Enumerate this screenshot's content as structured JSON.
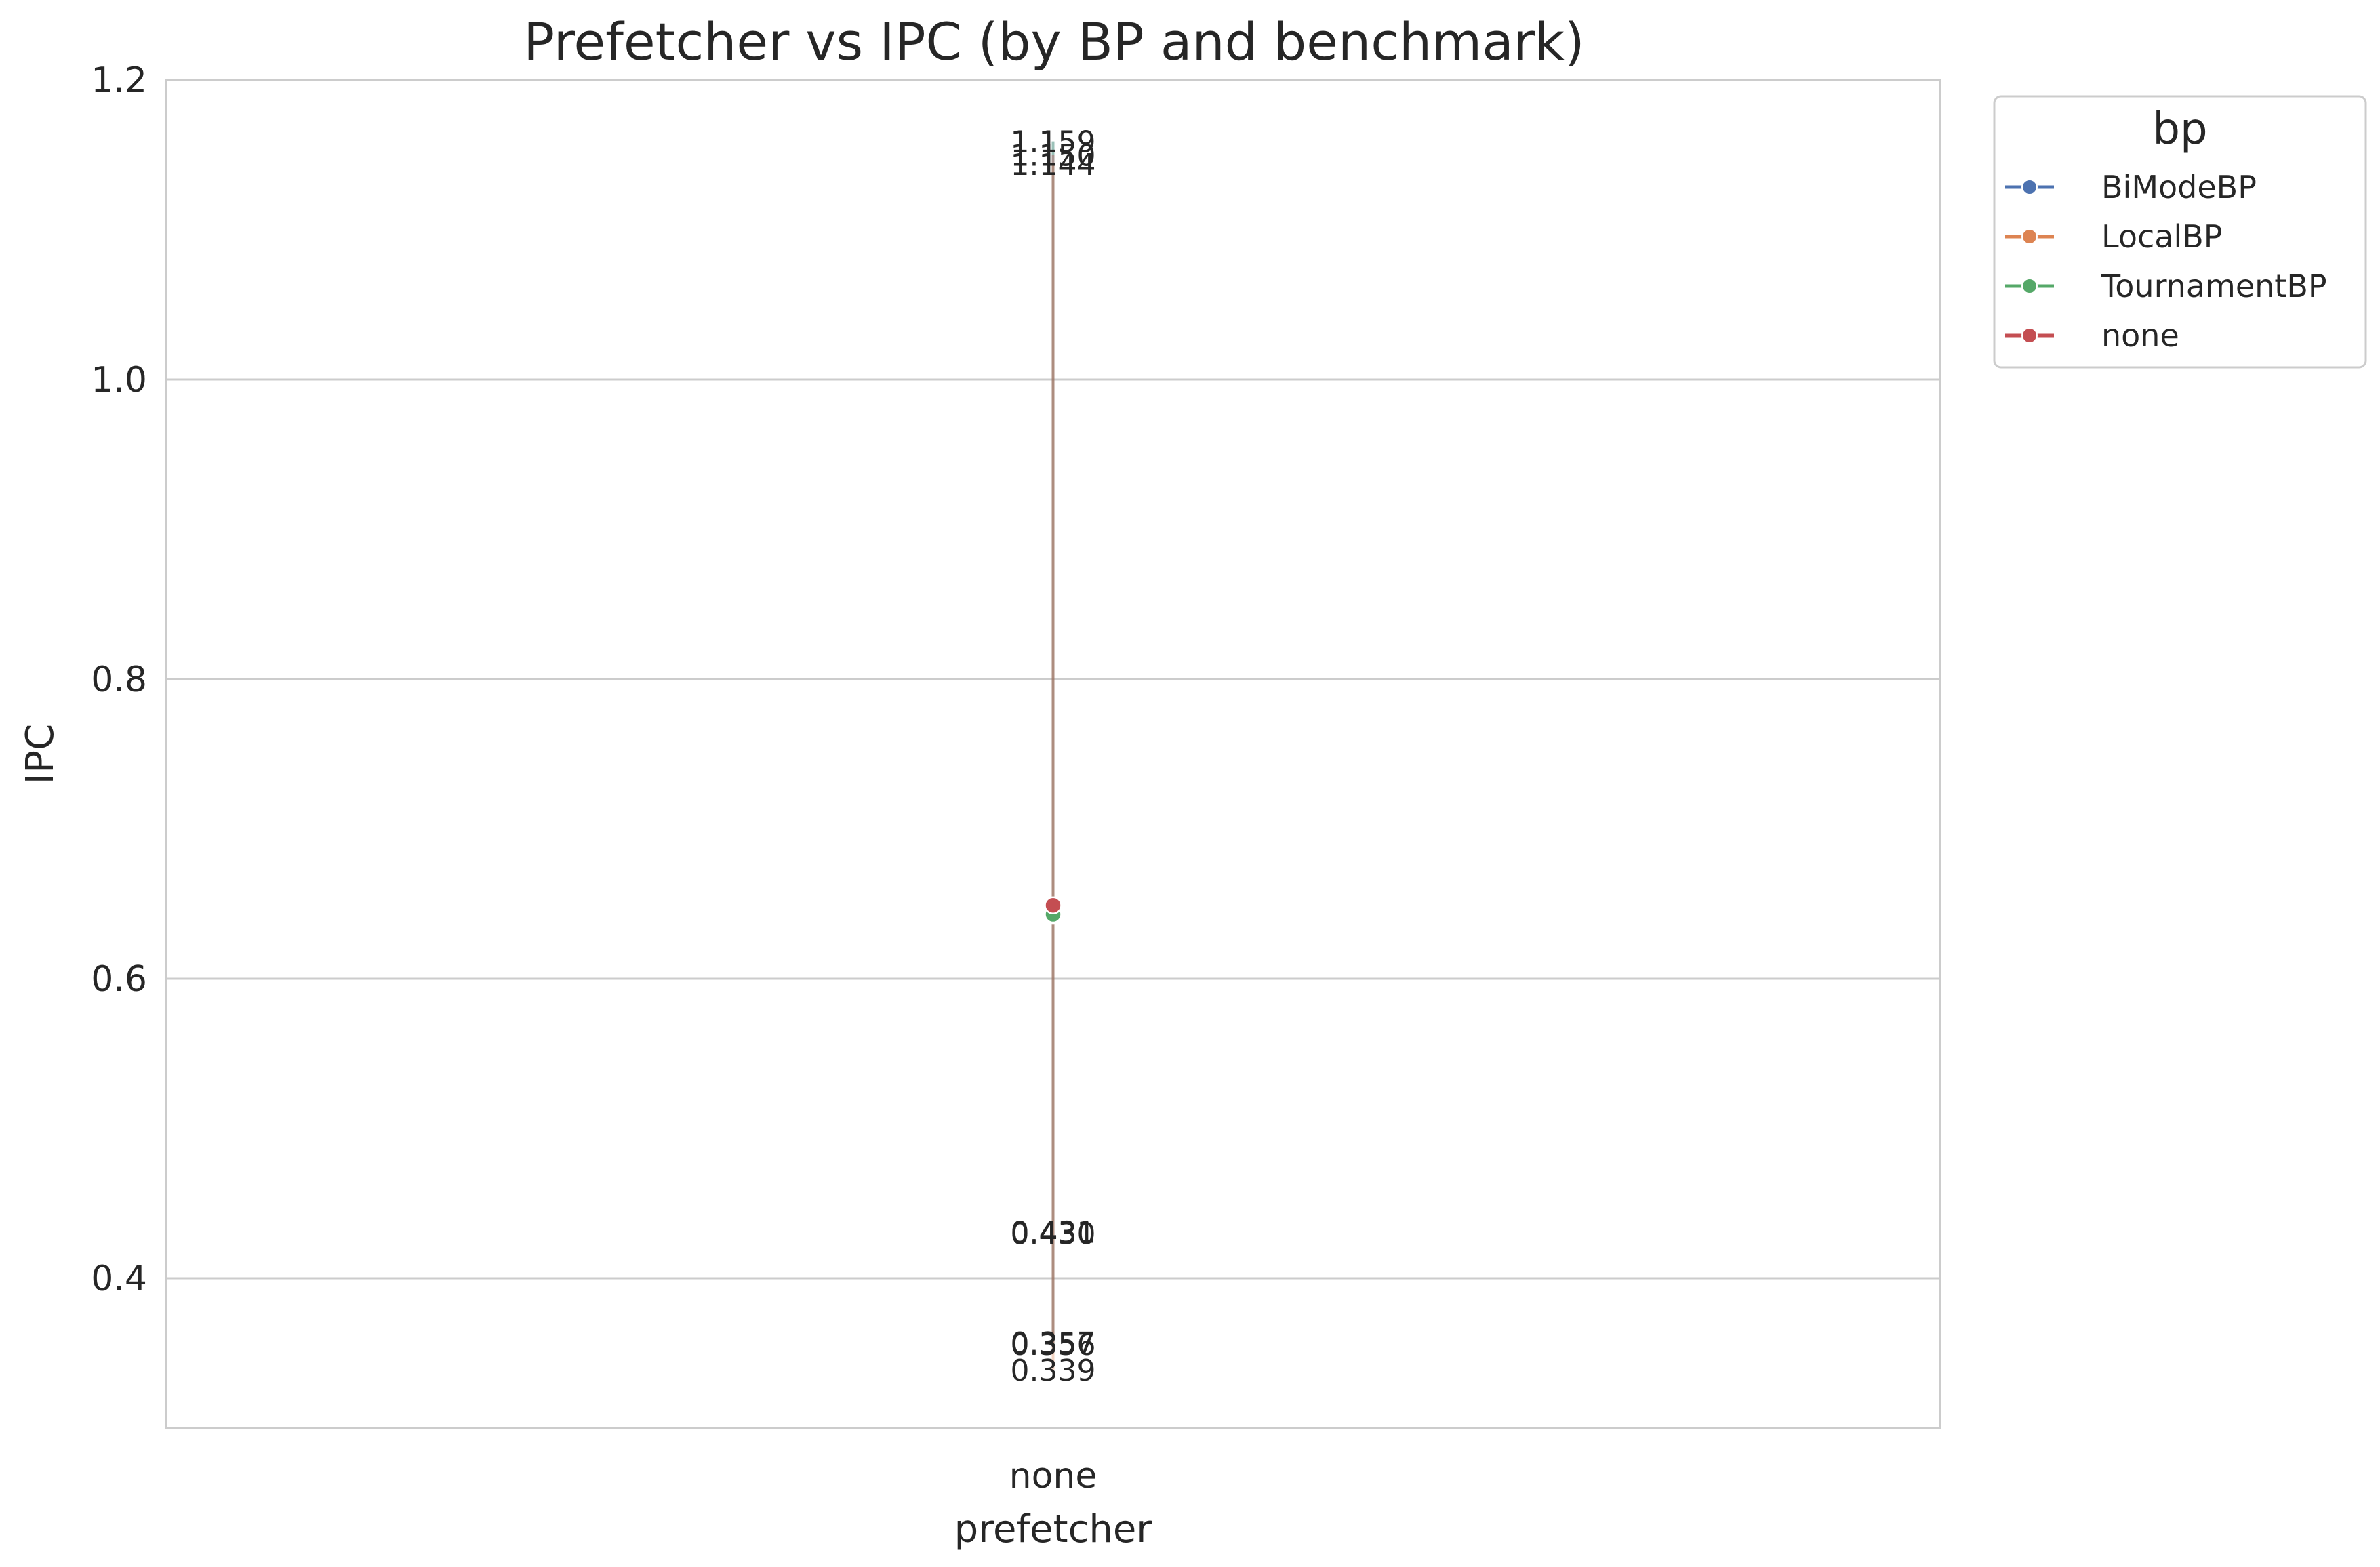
{
  "chart_data": {
    "type": "line",
    "title": "Prefetcher vs IPC (by BP and benchmark)",
    "xlabel": "prefetcher",
    "ylabel": "IPC",
    "categories": [
      "none"
    ],
    "ylim": [
      0.3,
      1.2
    ],
    "yticks": [
      "0.4",
      "0.6",
      "0.8",
      "1.0",
      "1.2"
    ],
    "grid": true,
    "legend": {
      "title": "bp",
      "placement": "outside-right-top"
    },
    "series": [
      {
        "name": "BiModeBP",
        "color": "#4c72b0",
        "mean": 0.643,
        "range": [
          0.356,
          1.159
        ]
      },
      {
        "name": "LocalBP",
        "color": "#dd8452",
        "mean": 0.642,
        "range": [
          0.339,
          1.144
        ]
      },
      {
        "name": "TournamentBP",
        "color": "#55a868",
        "mean": 0.643,
        "range": [
          0.356,
          1.159
        ]
      },
      {
        "name": "none",
        "color": "#c44e52",
        "mean": 0.649,
        "range": [
          0.357,
          1.15
        ]
      }
    ],
    "annotations": [
      "1.159",
      "1.150",
      "1.144",
      "0.431",
      "0.430",
      "0.357",
      "0.356",
      "0.339"
    ]
  }
}
